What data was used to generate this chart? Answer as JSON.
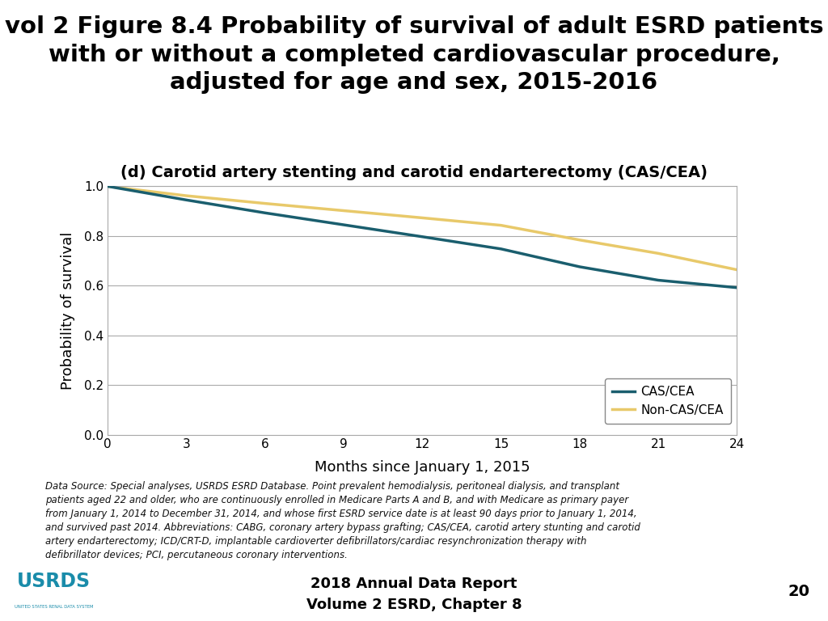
{
  "title_line1": "vol 2 Figure 8.4 Probability of survival of adult ESRD patients",
  "title_line2": "with or without a completed cardiovascular procedure,",
  "title_line3": "adjusted for age and sex, 2015-2016",
  "subtitle": "(d) Carotid artery stenting and carotid endarterectomy (CAS/CEA)",
  "xlabel": "Months since January 1, 2015",
  "ylabel": "Probability of survival",
  "xlim": [
    0,
    24
  ],
  "ylim": [
    0.0,
    1.0
  ],
  "xticks": [
    0,
    3,
    6,
    9,
    12,
    15,
    18,
    21,
    24
  ],
  "yticks": [
    0.0,
    0.2,
    0.4,
    0.6,
    0.8,
    1.0
  ],
  "cas_cea_x": [
    0,
    3,
    6,
    9,
    12,
    15,
    18,
    21,
    24
  ],
  "cas_cea_y": [
    1.0,
    0.945,
    0.893,
    0.845,
    0.797,
    0.748,
    0.676,
    0.622,
    0.592
  ],
  "non_cas_cea_x": [
    0,
    3,
    6,
    9,
    12,
    15,
    18,
    21,
    24
  ],
  "non_cas_cea_y": [
    1.0,
    0.962,
    0.931,
    0.902,
    0.873,
    0.843,
    0.784,
    0.73,
    0.664
  ],
  "cas_cea_color": "#1a5e6e",
  "non_cas_cea_color": "#e8c96a",
  "line_width": 2.5,
  "legend_labels": [
    "CAS/CEA",
    "Non-CAS/CEA"
  ],
  "footnote": "Data Source: Special analyses, USRDS ESRD Database. Point prevalent hemodialysis, peritoneal dialysis, and transplant\npatients aged 22 and older, who are continuously enrolled in Medicare Parts A and B, and with Medicare as primary payer\nfrom January 1, 2014 to December 31, 2014, and whose first ESRD service date is at least 90 days prior to January 1, 2014,\nand survived past 2014. Abbreviations: CABG, coronary artery bypass grafting; CAS/CEA, carotid artery stunting and carotid\nartery endarterectomy; ICD/CRT-D, implantable cardioverter defibrillators/cardiac resynchronization therapy with\ndefibrillator devices; PCI, percutaneous coronary interventions.",
  "footer_text_line1": "2018 Annual Data Report",
  "footer_text_line2": "Volume 2 ESRD, Chapter 8",
  "footer_page": "20",
  "footer_bg_color": "#4a9bb5",
  "background_color": "#ffffff",
  "plot_bg_color": "#ffffff",
  "title_fontsize": 21,
  "subtitle_fontsize": 14,
  "axis_label_fontsize": 13,
  "tick_fontsize": 11,
  "legend_fontsize": 11,
  "footnote_fontsize": 8.5
}
